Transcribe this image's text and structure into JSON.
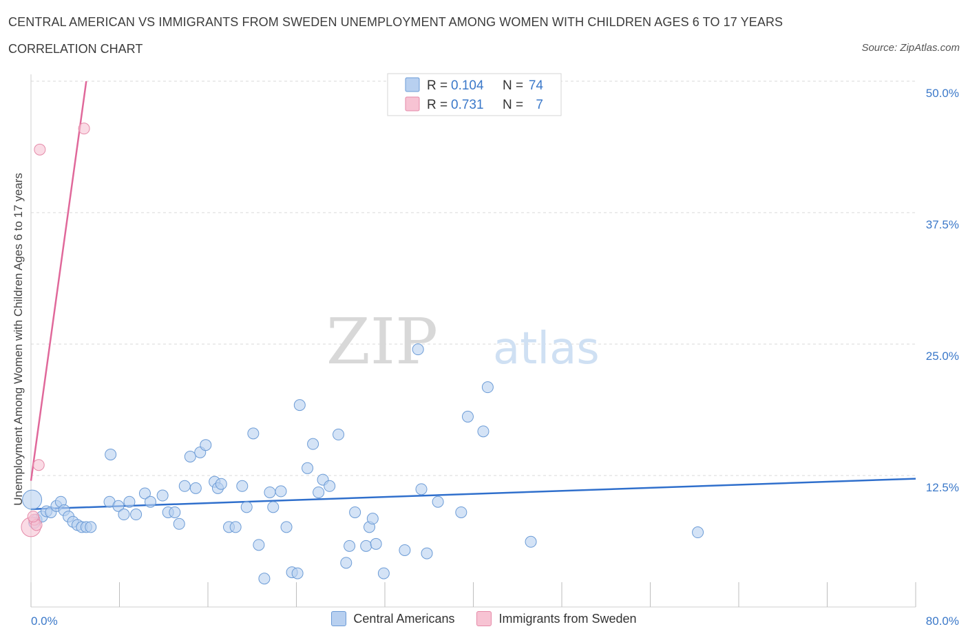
{
  "title": "CENTRAL AMERICAN VS IMMIGRANTS FROM SWEDEN UNEMPLOYMENT AMONG WOMEN WITH CHILDREN AGES 6 TO 17 YEARS",
  "subtitle": "CORRELATION CHART",
  "source": "Source: ZipAtlas.com",
  "colors": {
    "blue_fill": "#b8d0f0",
    "blue_stroke": "#6b9bd6",
    "blue_line": "#2f6fcc",
    "pink_fill": "#f7c3d3",
    "pink_stroke": "#e58aa8",
    "pink_line": "#e0689a",
    "tick_label": "#3a78c9",
    "grid": "#d9d9d9"
  },
  "stats_legend": [
    {
      "r_label": "R =",
      "r_value": "0.104",
      "n_label": "N =",
      "n_value": "74",
      "color": "blue"
    },
    {
      "r_label": "R =",
      "r_value": "0.731",
      "n_label": "N =",
      "n_value": "7",
      "color": "pink"
    }
  ],
  "watermark": {
    "part1": "ZIP",
    "part2": "atlas"
  },
  "chart_data": {
    "type": "scatter",
    "ylabel": "Unemployment Among Women with Children Ages 6 to 17 years",
    "xlabel": "",
    "xlim": [
      0,
      80
    ],
    "ylim": [
      0,
      50
    ],
    "x_tick_labels": [
      {
        "value": 0,
        "label": "0.0%"
      },
      {
        "value": 80,
        "label": "80.0%"
      }
    ],
    "y_tick_labels": [
      {
        "value": 12.5,
        "label": "12.5%"
      },
      {
        "value": 25,
        "label": "25.0%"
      },
      {
        "value": 37.5,
        "label": "37.5%"
      },
      {
        "value": 50,
        "label": "50.0%"
      }
    ],
    "grid": true,
    "legend_position": "bottom",
    "series": [
      {
        "name": "Central Americans",
        "color": "blue",
        "trend": {
          "x": [
            0,
            80
          ],
          "y": [
            9.3,
            12.2
          ]
        },
        "points": [
          [
            0.1,
            10.2
          ],
          [
            0.5,
            8.3
          ],
          [
            1.0,
            8.6
          ],
          [
            1.4,
            9.1
          ],
          [
            1.8,
            9.0
          ],
          [
            2.3,
            9.6
          ],
          [
            2.7,
            10.0
          ],
          [
            3.0,
            9.2
          ],
          [
            3.4,
            8.6
          ],
          [
            3.8,
            8.1
          ],
          [
            4.2,
            7.8
          ],
          [
            4.6,
            7.6
          ],
          [
            5.0,
            7.6
          ],
          [
            5.4,
            7.6
          ],
          [
            7.1,
            10.0
          ],
          [
            7.2,
            14.5
          ],
          [
            7.9,
            9.6
          ],
          [
            8.4,
            8.8
          ],
          [
            8.9,
            10.0
          ],
          [
            9.5,
            8.8
          ],
          [
            10.3,
            10.8
          ],
          [
            10.8,
            10.0
          ],
          [
            11.9,
            10.6
          ],
          [
            12.4,
            9.0
          ],
          [
            13.0,
            9.0
          ],
          [
            13.4,
            7.9
          ],
          [
            13.9,
            11.5
          ],
          [
            14.9,
            11.3
          ],
          [
            14.4,
            14.3
          ],
          [
            15.3,
            14.7
          ],
          [
            15.8,
            15.4
          ],
          [
            16.6,
            11.9
          ],
          [
            16.9,
            11.3
          ],
          [
            17.2,
            11.7
          ],
          [
            17.9,
            7.6
          ],
          [
            18.5,
            7.6
          ],
          [
            19.1,
            11.5
          ],
          [
            19.5,
            9.5
          ],
          [
            20.1,
            16.5
          ],
          [
            20.6,
            5.9
          ],
          [
            21.1,
            2.7
          ],
          [
            21.6,
            10.9
          ],
          [
            21.9,
            9.5
          ],
          [
            22.6,
            11.0
          ],
          [
            23.1,
            7.6
          ],
          [
            23.6,
            3.3
          ],
          [
            24.1,
            3.2
          ],
          [
            24.3,
            19.2
          ],
          [
            25.0,
            13.2
          ],
          [
            25.5,
            15.5
          ],
          [
            26.0,
            10.9
          ],
          [
            26.4,
            12.1
          ],
          [
            27.0,
            11.5
          ],
          [
            27.8,
            16.4
          ],
          [
            28.5,
            4.2
          ],
          [
            28.8,
            5.8
          ],
          [
            29.3,
            9.0
          ],
          [
            30.3,
            5.8
          ],
          [
            30.6,
            7.6
          ],
          [
            30.9,
            8.4
          ],
          [
            31.2,
            6.0
          ],
          [
            31.9,
            3.2
          ],
          [
            33.8,
            5.4
          ],
          [
            35.0,
            24.5
          ],
          [
            35.3,
            11.2
          ],
          [
            35.8,
            5.1
          ],
          [
            36.8,
            10.0
          ],
          [
            38.9,
            9.0
          ],
          [
            39.5,
            18.1
          ],
          [
            40.9,
            16.7
          ],
          [
            41.3,
            20.9
          ],
          [
            45.2,
            6.2
          ],
          [
            60.3,
            7.1
          ],
          [
            0.3,
            8.0
          ]
        ]
      },
      {
        "name": "Immigrants from Sweden",
        "color": "pink",
        "trend": {
          "x": [
            0,
            5.0
          ],
          "y": [
            12.0,
            50.0
          ]
        },
        "points": [
          [
            0.0,
            7.6
          ],
          [
            0.3,
            8.3
          ],
          [
            0.5,
            7.8
          ],
          [
            0.7,
            13.5
          ],
          [
            0.8,
            43.5
          ],
          [
            4.8,
            45.5
          ],
          [
            0.2,
            8.6
          ]
        ]
      }
    ]
  },
  "bottom_legend": [
    {
      "label": "Central Americans",
      "color": "blue"
    },
    {
      "label": "Immigrants from Sweden",
      "color": "pink"
    }
  ]
}
